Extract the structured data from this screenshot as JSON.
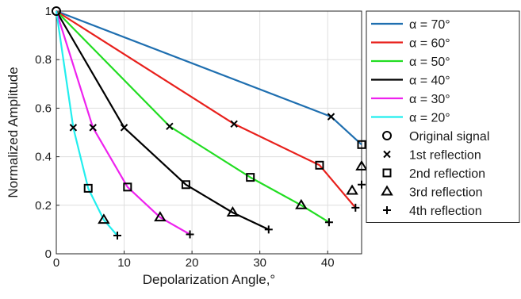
{
  "chart_data": {
    "type": "line",
    "title": "",
    "xlabel": "Depolarization Angle,°",
    "ylabel": "Normalized Amplitude",
    "xlim": [
      0,
      45
    ],
    "ylim": [
      0,
      1
    ],
    "xticks": [
      0,
      10,
      20,
      30,
      40
    ],
    "yticks": [
      0,
      0.2,
      0.4,
      0.6,
      0.8,
      1
    ],
    "grid": true,
    "legend_position": "right",
    "series": [
      {
        "name": "α = 70°",
        "color": "#1f6fb0",
        "x": [
          0,
          40.5,
          45
        ],
        "y": [
          1,
          0.565,
          0.45
        ]
      },
      {
        "name": "α = 60°",
        "color": "#e8201c",
        "x": [
          0,
          26.2,
          38.8,
          44.1
        ],
        "y": [
          1,
          0.535,
          0.365,
          0.19
        ]
      },
      {
        "name": "α = 50°",
        "color": "#22dd22",
        "x": [
          0,
          16.7,
          28.6,
          36.1,
          40.2
        ],
        "y": [
          1,
          0.525,
          0.315,
          0.2,
          0.13
        ]
      },
      {
        "name": "α = 40°",
        "color": "#000000",
        "x": [
          0,
          10,
          19.1,
          26,
          31.3
        ],
        "y": [
          1,
          0.52,
          0.285,
          0.17,
          0.1
        ]
      },
      {
        "name": "α = 30°",
        "color": "#ee22ee",
        "x": [
          0,
          5.4,
          10.5,
          15.3,
          19.7
        ],
        "y": [
          1,
          0.52,
          0.275,
          0.15,
          0.08
        ]
      },
      {
        "name": "α = 20°",
        "color": "#22eeee",
        "x": [
          0,
          2.5,
          4.7,
          7,
          9
        ],
        "y": [
          1,
          0.52,
          0.27,
          0.14,
          0.075
        ]
      }
    ],
    "markers": [
      {
        "name": "Original signal",
        "symbol": "circle",
        "points": [
          [
            0,
            1
          ]
        ]
      },
      {
        "name": "1st reflection",
        "symbol": "x",
        "points": [
          [
            2.5,
            0.52
          ],
          [
            5.4,
            0.52
          ],
          [
            10,
            0.52
          ],
          [
            16.7,
            0.525
          ],
          [
            26.2,
            0.535
          ],
          [
            40.5,
            0.565
          ]
        ]
      },
      {
        "name": "2nd reflection",
        "symbol": "square",
        "points": [
          [
            4.7,
            0.27
          ],
          [
            10.5,
            0.275
          ],
          [
            19.1,
            0.285
          ],
          [
            28.6,
            0.315
          ],
          [
            38.8,
            0.365
          ],
          [
            45,
            0.45
          ]
        ]
      },
      {
        "name": "3rd reflection",
        "symbol": "triangle",
        "points": [
          [
            7,
            0.14
          ],
          [
            15.3,
            0.15
          ],
          [
            26,
            0.17
          ],
          [
            36.1,
            0.2
          ],
          [
            43.6,
            0.26
          ],
          [
            45,
            0.36
          ]
        ]
      },
      {
        "name": "4th reflection",
        "symbol": "plus",
        "points": [
          [
            9,
            0.075
          ],
          [
            19.7,
            0.08
          ],
          [
            31.3,
            0.1
          ],
          [
            40.2,
            0.13
          ],
          [
            44.1,
            0.19
          ],
          [
            45,
            0.285
          ]
        ]
      }
    ]
  }
}
